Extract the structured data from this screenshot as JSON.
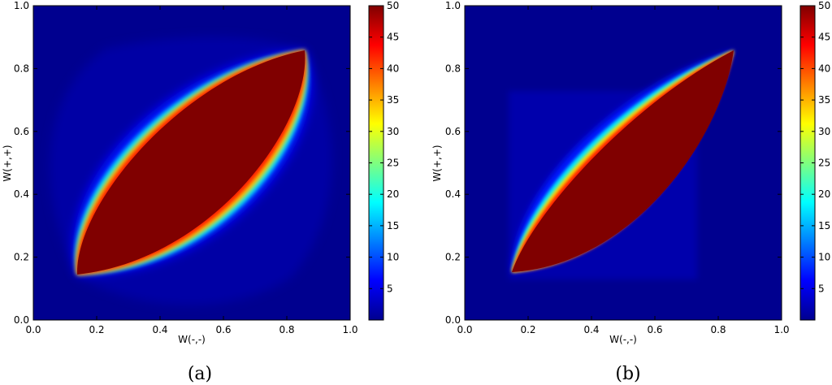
{
  "chart_data": [
    {
      "type": "heatmap",
      "caption": "(a)",
      "xlabel": "W(-,-)",
      "ylabel": "W(+,+)",
      "xlim": [
        0.0,
        1.0
      ],
      "ylim": [
        0.0,
        1.0
      ],
      "x_ticks": [
        "0.0",
        "0.2",
        "0.4",
        "0.6",
        "0.8",
        "1.0"
      ],
      "y_ticks": [
        "0.0",
        "0.2",
        "0.4",
        "0.6",
        "0.8",
        "1.0"
      ],
      "colorbar": {
        "range": [
          0,
          50
        ],
        "ticks": [
          "5",
          "10",
          "15",
          "20",
          "25",
          "30",
          "35",
          "40",
          "45",
          "50"
        ],
        "colormap": "jet"
      },
      "ridge_endpoints": [
        [
          0.14,
          0.15
        ],
        [
          0.86,
          0.86
        ]
      ],
      "shape": "lens"
    },
    {
      "type": "heatmap",
      "caption": "(b)",
      "xlabel": "W(-,-)",
      "ylabel": "W(+,+)",
      "xlim": [
        0.0,
        1.0
      ],
      "ylim": [
        0.0,
        1.0
      ],
      "x_ticks": [
        "0.0",
        "0.2",
        "0.4",
        "0.6",
        "0.8",
        "1.0"
      ],
      "y_ticks": [
        "0.0",
        "0.2",
        "0.4",
        "0.6",
        "0.8",
        "1.0"
      ],
      "colorbar": {
        "range": [
          0,
          50
        ],
        "ticks": [
          "5",
          "10",
          "15",
          "20",
          "25",
          "30",
          "35",
          "40",
          "45",
          "50"
        ],
        "colormap": "jet"
      },
      "ridge_endpoints": [
        [
          0.15,
          0.15
        ],
        [
          0.85,
          0.85
        ]
      ],
      "shape": "leaf",
      "halo_extent": {
        "x": [
          0.14,
          0.73
        ],
        "y": [
          0.14,
          0.73
        ]
      }
    }
  ]
}
